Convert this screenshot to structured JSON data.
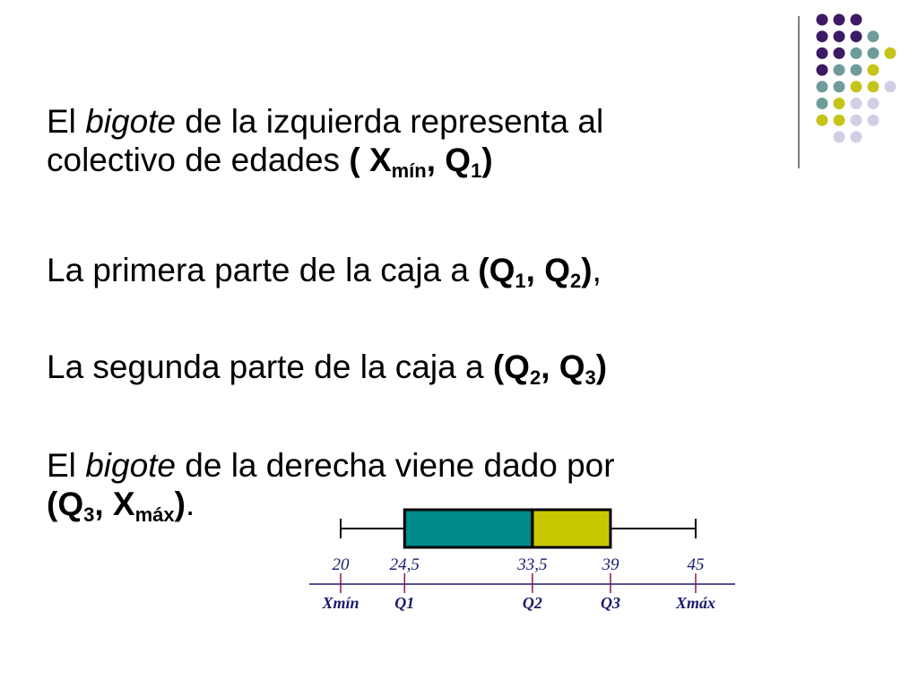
{
  "slide": {
    "para1": {
      "prefix": "El ",
      "em": "bigote",
      "line1_rest": " de la izquierda representa al",
      "line2": "colectivo de edades ",
      "open": "( X",
      "sub_min": "mín",
      "mid": ", Q",
      "sub_1": "1",
      "close": ")"
    },
    "para2": {
      "text": "La primera parte de la caja a ",
      "open": "(Q",
      "sub_a": "1",
      "mid": ", Q",
      "sub_b": "2",
      "close": ")",
      "tail": ","
    },
    "para3": {
      "text": "La segunda parte de la caja a ",
      "open": "(Q",
      "sub_a": "2",
      "mid": ", Q",
      "sub_b": "3",
      "close": ")"
    },
    "para4": {
      "prefix": "El ",
      "em": "bigote",
      "line1_rest": " de la derecha viene dado por",
      "open": "(Q",
      "sub_a": "3",
      "mid": ", X",
      "sub_b": "máx",
      "close": ")",
      "tail": "."
    }
  },
  "chart_data": {
    "type": "box",
    "min": 20,
    "q1": 24.5,
    "median": 33.5,
    "q3": 39,
    "max": 45,
    "ticks": [
      {
        "value": 20,
        "value_label": "20",
        "name": "Xmín"
      },
      {
        "value": 24.5,
        "value_label": "24,5",
        "name": "Q1"
      },
      {
        "value": 33.5,
        "value_label": "33,5",
        "name": "Q2"
      },
      {
        "value": 39,
        "value_label": "39",
        "name": "Q3"
      },
      {
        "value": 45,
        "value_label": "45",
        "name": "Xmáx"
      }
    ],
    "colors": {
      "left_box": "#008b8b",
      "right_box": "#c8c800",
      "axis": "#1a1a6e",
      "tick": "#8b1a4a"
    }
  },
  "decor": {
    "dot_colors": {
      "purple": "#3d1a63",
      "teal": "#6e9c9a",
      "yellow": "#c5c41a",
      "lavender": "#cfd0e5"
    }
  }
}
